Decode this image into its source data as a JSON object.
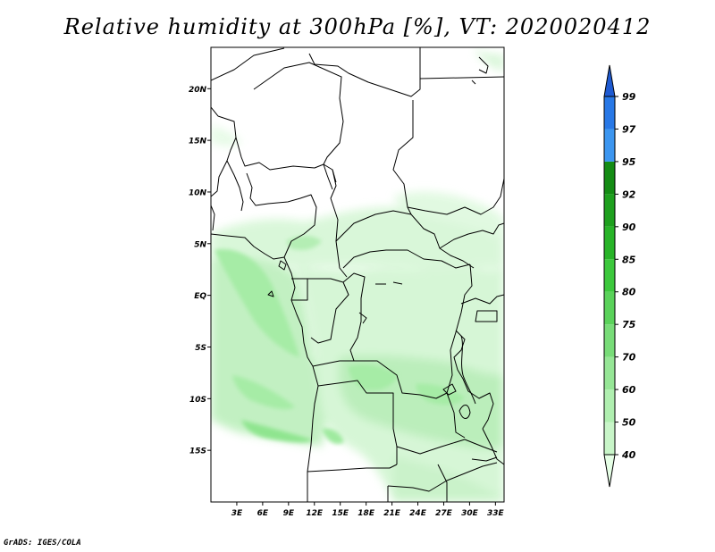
{
  "title": "Relative humidity at 300hPa [%], VT: 2020020412",
  "credit": "GrADS: IGES/COLA",
  "map": {
    "lon_range": [
      0,
      34
    ],
    "lat_range": [
      -20,
      24
    ],
    "lat_ticks": [
      {
        "v": 20,
        "label": "20N"
      },
      {
        "v": 15,
        "label": "15N"
      },
      {
        "v": 10,
        "label": "10N"
      },
      {
        "v": 5,
        "label": "5N"
      },
      {
        "v": 0,
        "label": "EQ"
      },
      {
        "v": -5,
        "label": "5S"
      },
      {
        "v": -10,
        "label": "10S"
      },
      {
        "v": -15,
        "label": "15S"
      }
    ],
    "lon_ticks": [
      {
        "v": 3,
        "label": "3E"
      },
      {
        "v": 6,
        "label": "6E"
      },
      {
        "v": 9,
        "label": "9E"
      },
      {
        "v": 12,
        "label": "12E"
      },
      {
        "v": 15,
        "label": "15E"
      },
      {
        "v": 18,
        "label": "18E"
      },
      {
        "v": 21,
        "label": "21E"
      },
      {
        "v": 24,
        "label": "24E"
      },
      {
        "v": 27,
        "label": "27E"
      },
      {
        "v": 30,
        "label": "30E"
      },
      {
        "v": 33,
        "label": "33E"
      }
    ]
  },
  "colorbar": {
    "levels": [
      "40",
      "50",
      "60",
      "70",
      "75",
      "80",
      "85",
      "90",
      "92",
      "95",
      "97",
      "99"
    ],
    "colors": [
      "#e6ffe6",
      "#c8f5c8",
      "#b0efb0",
      "#96e696",
      "#78dc78",
      "#5ad25a",
      "#3cc83c",
      "#28b428",
      "#1ea01e",
      "#148c14",
      "#3c96f0",
      "#2878e6",
      "#1e5ad2"
    ]
  }
}
